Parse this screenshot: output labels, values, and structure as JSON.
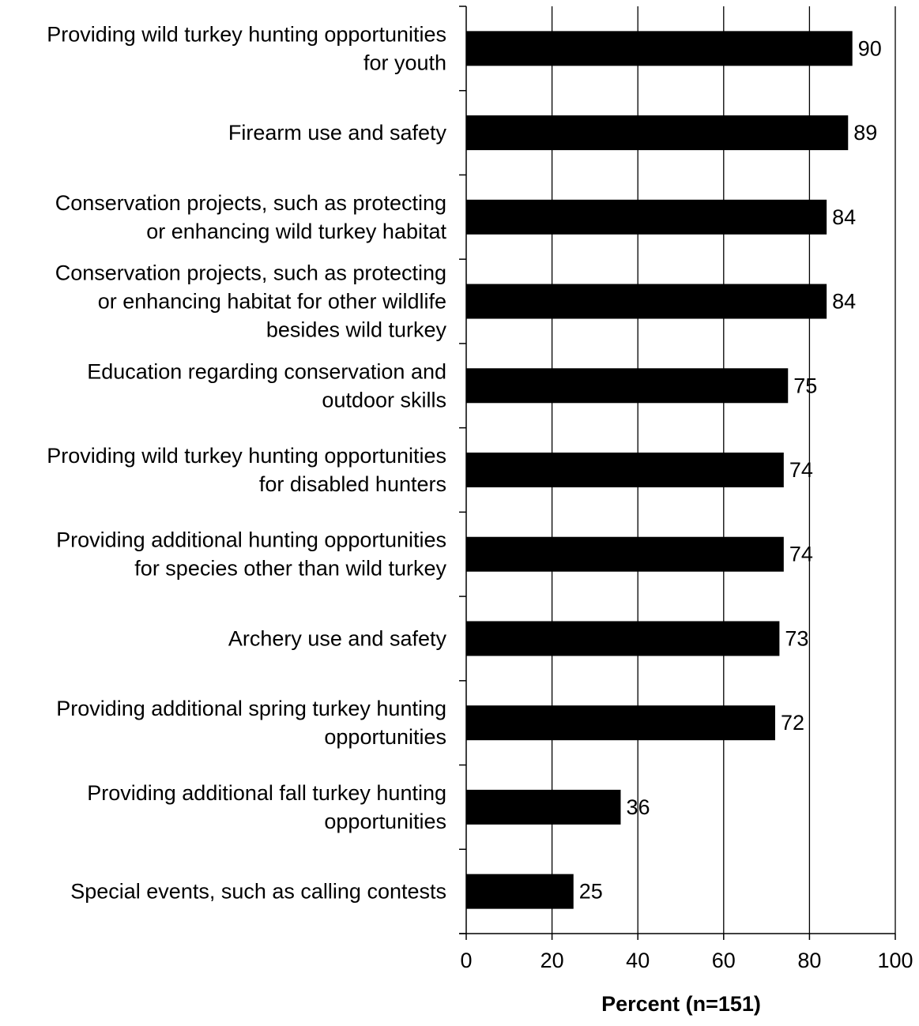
{
  "chart_data": {
    "type": "bar",
    "orientation": "horizontal",
    "categories": [
      [
        "Providing wild turkey hunting opportunities",
        "for youth"
      ],
      [
        "Firearm use and safety"
      ],
      [
        "Conservation projects, such as protecting",
        "or enhancing wild turkey habitat"
      ],
      [
        "Conservation projects, such as protecting",
        "or enhancing habitat for other wildlife",
        "besides wild turkey"
      ],
      [
        "Education regarding conservation and",
        "outdoor skills"
      ],
      [
        "Providing wild turkey hunting opportunities",
        "for disabled hunters"
      ],
      [
        "Providing additional hunting opportunities",
        "for species other than wild turkey"
      ],
      [
        "Archery use and safety"
      ],
      [
        "Providing additional spring turkey hunting",
        "opportunities"
      ],
      [
        "Providing additional fall turkey hunting",
        "opportunities"
      ],
      [
        "Special events, such as calling contests"
      ]
    ],
    "values": [
      90,
      89,
      84,
      84,
      75,
      74,
      74,
      73,
      72,
      36,
      25
    ],
    "data_labels": [
      "90",
      "89",
      "84",
      "84",
      "75",
      "74",
      "74",
      "73",
      "72",
      "36",
      "25"
    ],
    "title": "",
    "xlabel": "Percent (n=151)",
    "ylabel": "",
    "xlim": [
      0,
      100
    ],
    "xticks": [
      0,
      20,
      40,
      60,
      80,
      100
    ],
    "xtick_labels": [
      "0",
      "20",
      "40",
      "60",
      "80",
      "100"
    ],
    "grid": "vertical",
    "legend": "none",
    "colors": {
      "bar": "#000000",
      "grid": "#000000",
      "background": "#ffffff"
    }
  }
}
